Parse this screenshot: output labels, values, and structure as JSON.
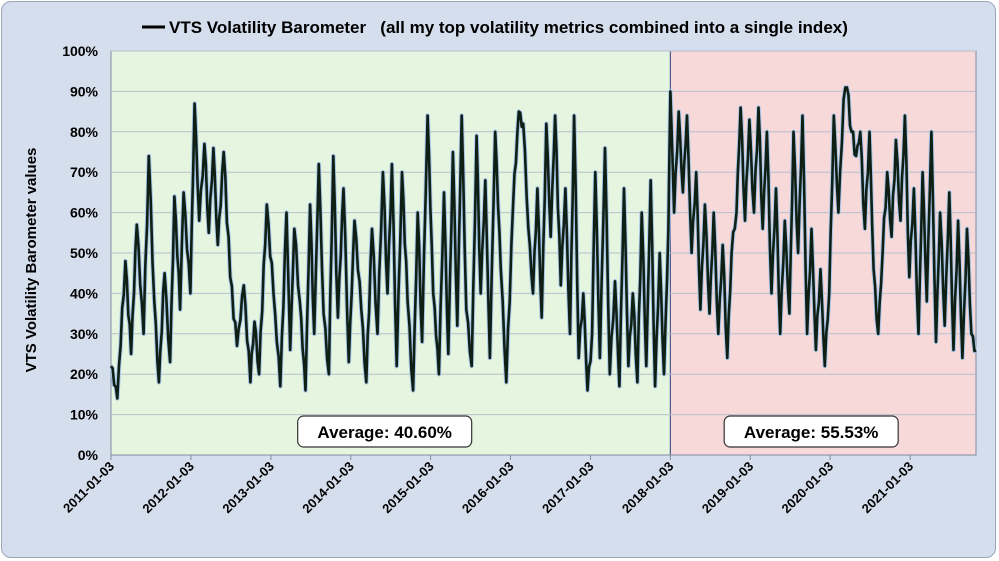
{
  "chart_data": {
    "type": "line",
    "title": "VTS Volatility Barometer   (all my top volatility metrics combined into a single index)",
    "legend_marker": "line",
    "xlabel": "",
    "ylabel": "VTS Volatility Barometer values",
    "ylim": [
      0,
      100
    ],
    "y_ticks": [
      "0%",
      "10%",
      "20%",
      "30%",
      "40%",
      "50%",
      "60%",
      "70%",
      "80%",
      "90%",
      "100%"
    ],
    "x_ticks": [
      "2011-01-03",
      "2012-01-03",
      "2013-01-03",
      "2014-01-03",
      "2015-01-03",
      "2016-01-03",
      "2017-01-03",
      "2018-01-03",
      "2019-01-03",
      "2020-01-03",
      "2021-01-03"
    ],
    "x_range": [
      "2011-01-03",
      "2021-10-31"
    ],
    "grid": true,
    "regions": [
      {
        "start": "2011-01-03",
        "end": "2018-01-03",
        "color": "#e6f5e0",
        "average_label": "Average:  40.60%",
        "average": 40.6
      },
      {
        "start": "2018-01-03",
        "end": "2021-10-31",
        "color": "#f7d9da",
        "average_label": "Average:  55.53%",
        "average": 55.53
      }
    ],
    "series": [
      {
        "name": "VTS Volatility Barometer",
        "color": "#0f1f14",
        "outline": "#a8c7e8",
        "anchors": [
          [
            "2011-01-03",
            22
          ],
          [
            "2011-02-01",
            14
          ],
          [
            "2011-03-10",
            48
          ],
          [
            "2011-04-05",
            25
          ],
          [
            "2011-05-01",
            57
          ],
          [
            "2011-06-01",
            30
          ],
          [
            "2011-06-25",
            74
          ],
          [
            "2011-07-20",
            38
          ],
          [
            "2011-08-10",
            18
          ],
          [
            "2011-09-05",
            45
          ],
          [
            "2011-09-30",
            23
          ],
          [
            "2011-10-20",
            64
          ],
          [
            "2011-11-15",
            36
          ],
          [
            "2011-12-01",
            65
          ],
          [
            "2012-01-01",
            40
          ],
          [
            "2012-01-20",
            87
          ],
          [
            "2012-02-10",
            58
          ],
          [
            "2012-03-05",
            77
          ],
          [
            "2012-03-25",
            55
          ],
          [
            "2012-04-15",
            76
          ],
          [
            "2012-05-05",
            52
          ],
          [
            "2012-06-01",
            75
          ],
          [
            "2012-07-01",
            44
          ],
          [
            "2012-08-01",
            27
          ],
          [
            "2012-09-01",
            42
          ],
          [
            "2012-10-01",
            18
          ],
          [
            "2012-10-20",
            33
          ],
          [
            "2012-11-10",
            20
          ],
          [
            "2012-12-15",
            62
          ],
          [
            "2013-01-15",
            40
          ],
          [
            "2013-02-15",
            17
          ],
          [
            "2013-03-15",
            60
          ],
          [
            "2013-04-01",
            26
          ],
          [
            "2013-04-20",
            56
          ],
          [
            "2013-05-15",
            38
          ],
          [
            "2013-06-10",
            16
          ],
          [
            "2013-07-01",
            62
          ],
          [
            "2013-07-20",
            30
          ],
          [
            "2013-08-10",
            72
          ],
          [
            "2013-09-01",
            35
          ],
          [
            "2013-09-25",
            20
          ],
          [
            "2013-10-15",
            74
          ],
          [
            "2013-11-05",
            34
          ],
          [
            "2013-12-01",
            66
          ],
          [
            "2013-12-25",
            23
          ],
          [
            "2014-01-20",
            58
          ],
          [
            "2014-02-20",
            36
          ],
          [
            "2014-03-15",
            18
          ],
          [
            "2014-04-10",
            56
          ],
          [
            "2014-05-05",
            30
          ],
          [
            "2014-05-30",
            70
          ],
          [
            "2014-06-20",
            40
          ],
          [
            "2014-07-10",
            72
          ],
          [
            "2014-08-01",
            22
          ],
          [
            "2014-08-25",
            70
          ],
          [
            "2014-09-20",
            38
          ],
          [
            "2014-10-15",
            16
          ],
          [
            "2014-11-05",
            60
          ],
          [
            "2014-11-25",
            28
          ],
          [
            "2014-12-20",
            84
          ],
          [
            "2015-01-15",
            40
          ],
          [
            "2015-02-10",
            20
          ],
          [
            "2015-03-05",
            65
          ],
          [
            "2015-03-25",
            25
          ],
          [
            "2015-04-15",
            75
          ],
          [
            "2015-05-05",
            32
          ],
          [
            "2015-05-25",
            84
          ],
          [
            "2015-06-15",
            36
          ],
          [
            "2015-07-10",
            22
          ],
          [
            "2015-08-01",
            79
          ],
          [
            "2015-08-20",
            40
          ],
          [
            "2015-09-10",
            68
          ],
          [
            "2015-10-01",
            24
          ],
          [
            "2015-10-25",
            80
          ],
          [
            "2015-11-20",
            46
          ],
          [
            "2015-12-15",
            18
          ],
          [
            "2016-01-15",
            62
          ],
          [
            "2016-02-10",
            85
          ],
          [
            "2016-03-01",
            82
          ],
          [
            "2016-03-25",
            56
          ],
          [
            "2016-04-15",
            40
          ],
          [
            "2016-05-05",
            66
          ],
          [
            "2016-05-25",
            34
          ],
          [
            "2016-06-15",
            82
          ],
          [
            "2016-07-05",
            54
          ],
          [
            "2016-07-25",
            84
          ],
          [
            "2016-08-20",
            42
          ],
          [
            "2016-09-10",
            66
          ],
          [
            "2016-10-01",
            30
          ],
          [
            "2016-10-20",
            84
          ],
          [
            "2016-11-10",
            24
          ],
          [
            "2016-12-01",
            40
          ],
          [
            "2016-12-20",
            16
          ],
          [
            "2017-01-10",
            30
          ],
          [
            "2017-01-25",
            70
          ],
          [
            "2017-02-15",
            24
          ],
          [
            "2017-03-10",
            76
          ],
          [
            "2017-04-01",
            20
          ],
          [
            "2017-04-25",
            43
          ],
          [
            "2017-05-15",
            17
          ],
          [
            "2017-06-05",
            66
          ],
          [
            "2017-06-25",
            22
          ],
          [
            "2017-07-15",
            40
          ],
          [
            "2017-08-05",
            18
          ],
          [
            "2017-08-25",
            60
          ],
          [
            "2017-09-15",
            22
          ],
          [
            "2017-10-05",
            68
          ],
          [
            "2017-10-25",
            17
          ],
          [
            "2017-11-15",
            50
          ],
          [
            "2017-12-05",
            20
          ],
          [
            "2017-12-25",
            56
          ],
          [
            "2018-01-03",
            90
          ],
          [
            "2018-01-20",
            60
          ],
          [
            "2018-02-10",
            85
          ],
          [
            "2018-03-01",
            65
          ],
          [
            "2018-03-20",
            84
          ],
          [
            "2018-04-10",
            50
          ],
          [
            "2018-05-01",
            70
          ],
          [
            "2018-05-20",
            36
          ],
          [
            "2018-06-10",
            62
          ],
          [
            "2018-07-01",
            35
          ],
          [
            "2018-07-20",
            60
          ],
          [
            "2018-08-10",
            30
          ],
          [
            "2018-08-30",
            52
          ],
          [
            "2018-09-20",
            24
          ],
          [
            "2018-10-10",
            50
          ],
          [
            "2018-11-01",
            60
          ],
          [
            "2018-11-20",
            86
          ],
          [
            "2018-12-10",
            58
          ],
          [
            "2018-12-30",
            83
          ],
          [
            "2019-01-20",
            60
          ],
          [
            "2019-02-10",
            86
          ],
          [
            "2019-03-01",
            56
          ],
          [
            "2019-03-20",
            80
          ],
          [
            "2019-04-10",
            40
          ],
          [
            "2019-05-01",
            66
          ],
          [
            "2019-05-20",
            30
          ],
          [
            "2019-06-10",
            58
          ],
          [
            "2019-07-01",
            35
          ],
          [
            "2019-07-20",
            80
          ],
          [
            "2019-08-10",
            50
          ],
          [
            "2019-08-30",
            84
          ],
          [
            "2019-09-20",
            30
          ],
          [
            "2019-10-10",
            56
          ],
          [
            "2019-10-30",
            26
          ],
          [
            "2019-11-20",
            46
          ],
          [
            "2019-12-10",
            22
          ],
          [
            "2019-12-30",
            40
          ],
          [
            "2020-01-20",
            84
          ],
          [
            "2020-02-10",
            60
          ],
          [
            "2020-03-05",
            88
          ],
          [
            "2020-03-20",
            91
          ],
          [
            "2020-04-10",
            80
          ],
          [
            "2020-05-01",
            74
          ],
          [
            "2020-05-20",
            80
          ],
          [
            "2020-06-10",
            56
          ],
          [
            "2020-07-01",
            80
          ],
          [
            "2020-07-20",
            46
          ],
          [
            "2020-08-10",
            30
          ],
          [
            "2020-08-30",
            50
          ],
          [
            "2020-09-20",
            70
          ],
          [
            "2020-10-10",
            54
          ],
          [
            "2020-10-30",
            78
          ],
          [
            "2020-11-20",
            58
          ],
          [
            "2020-12-10",
            84
          ],
          [
            "2020-12-30",
            44
          ],
          [
            "2021-01-20",
            66
          ],
          [
            "2021-02-10",
            30
          ],
          [
            "2021-03-01",
            70
          ],
          [
            "2021-03-20",
            38
          ],
          [
            "2021-04-10",
            80
          ],
          [
            "2021-05-01",
            28
          ],
          [
            "2021-05-20",
            60
          ],
          [
            "2021-06-10",
            32
          ],
          [
            "2021-07-01",
            65
          ],
          [
            "2021-07-20",
            26
          ],
          [
            "2021-08-10",
            58
          ],
          [
            "2021-08-30",
            24
          ],
          [
            "2021-09-20",
            56
          ],
          [
            "2021-10-10",
            30
          ],
          [
            "2021-10-31",
            26
          ]
        ]
      }
    ]
  }
}
